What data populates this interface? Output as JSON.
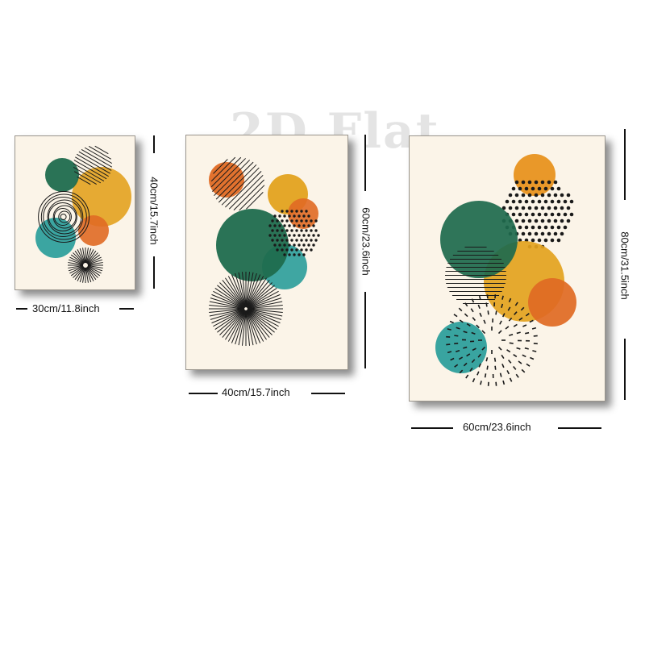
{
  "watermark": "2D Flat",
  "prints": [
    {
      "width_label": "30cm/11.8inch",
      "height_label": "40cm/15.7inch"
    },
    {
      "width_label": "40cm/15.7inch",
      "height_label": "60cm/23.6inch"
    },
    {
      "width_label": "60cm/23.6inch",
      "height_label": "80cm/31.5inch"
    }
  ],
  "colors": {
    "background": "#fbf4e8",
    "green": "#1f6b4e",
    "teal": "#2a9d9a",
    "mustard": "#e3a21f",
    "orange": "#e06a24",
    "amber": "#e8921f",
    "line": "#1a1a1a"
  }
}
